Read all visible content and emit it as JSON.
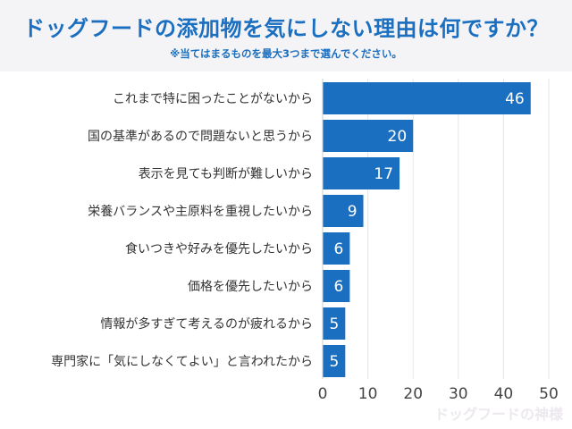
{
  "chart_data": {
    "type": "bar",
    "orientation": "horizontal",
    "title": "ドッグフードの添加物を気にしない理由は何ですか？",
    "subtitle": "※当てはまるものを最大3つまで選んでください。",
    "categories": [
      "これまで特に困ったことがないから",
      "国の基準があるので問題ないと思うから",
      "表示を見ても判断が難しいから",
      "栄養バランスや主原料を重視したいから",
      "食いつきや好みを優先したいから",
      "価格を優先したいから",
      "情報が多すぎて考えるのが疲れるから",
      "専門家に「気にしなくてよい」と言われたから"
    ],
    "values": [
      46,
      20,
      17,
      9,
      6,
      6,
      5,
      5
    ],
    "xlim": [
      0,
      50
    ],
    "xticks": [
      0,
      10,
      20,
      30,
      40,
      50
    ],
    "grid": true,
    "bar_color": "#1a6fc0",
    "title_color": "#1a6fc0",
    "watermark": "ドッグフードの神様"
  }
}
